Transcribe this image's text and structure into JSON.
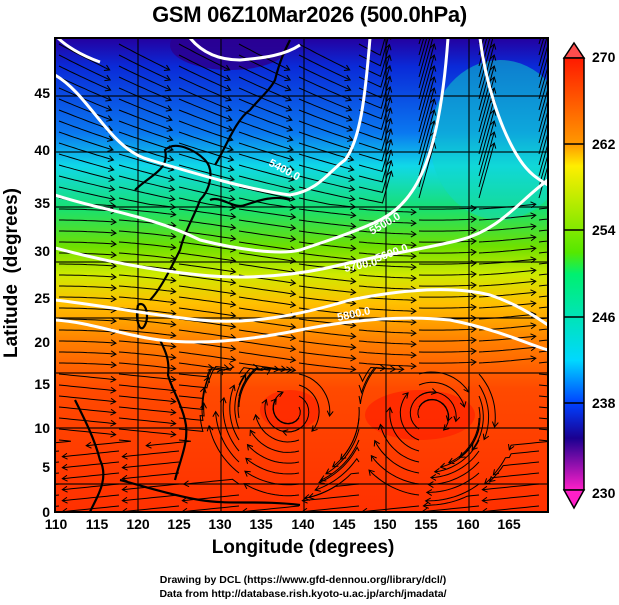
{
  "title": "GSM 06Z10Mar2026 (500.0hPa)",
  "map": {
    "type": "streamline-geopotential-temperature",
    "xlabel": "Longitude (degrees)",
    "ylabel": "Latitude  (degrees)",
    "x_range": [
      110,
      170
    ],
    "y_range": [
      0,
      50
    ],
    "x_ticks": [
      "110",
      "115",
      "120",
      "125",
      "130",
      "135",
      "140",
      "145",
      "150",
      "155",
      "160",
      "165"
    ],
    "y_ticks": [
      "0",
      "5",
      "10",
      "15",
      "20",
      "25",
      "30",
      "35",
      "40",
      "45"
    ],
    "contours": [
      {
        "label": "5400.0",
        "value": 5400
      },
      {
        "label": "5500.0",
        "value": 5500
      },
      {
        "label": "5600.0",
        "value": 5600
      },
      {
        "label": "5700.0",
        "value": 5700
      },
      {
        "label": "5800.0",
        "value": 5800
      }
    ]
  },
  "colorbar": {
    "min": 230,
    "max": 270,
    "ticks": [
      "270",
      "262",
      "254",
      "246",
      "238",
      "230"
    ],
    "colors": {
      "top": "#ff3c3c",
      "red": "#ff1a00",
      "orange": "#ff9900",
      "yellow": "#ffee00",
      "green": "#22e000",
      "cyan": "#00f0e0",
      "blue": "#0044ff",
      "navy": "#1a0090",
      "magenta": "#ff1fc8"
    }
  },
  "credits": {
    "line1": "Drawing by DCL (https://www.gfd-dennou.org/library/dcl/)",
    "line2": "Data from http://database.rish.kyoto-u.ac.jp/arch/jmadata/"
  }
}
